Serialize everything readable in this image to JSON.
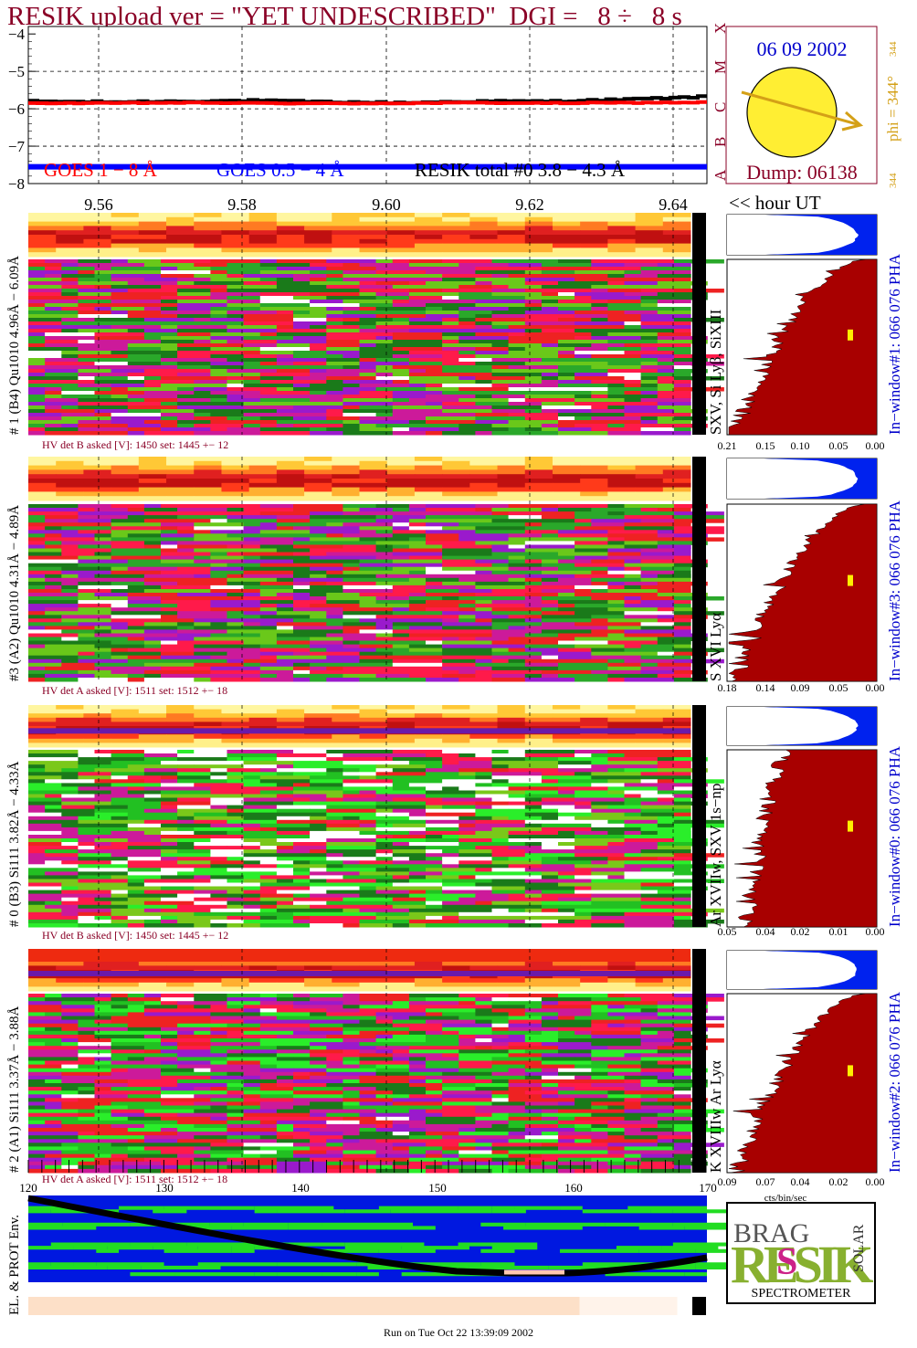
{
  "header": {
    "title": "RESIK upload ver = \"YET UNDESCRIBED\"  DGI =   8 ÷   8 s"
  },
  "colors": {
    "title": "#8a0026",
    "goes_long": "#ff0000",
    "goes_short": "#0000ff",
    "resik_total": "#000000",
    "phi": "#d4a017",
    "sun": "#ffee33",
    "pha_fill": "#a80000",
    "pha_blue": "#0022ee",
    "orbit_blue": "#0018e0",
    "orbit_green": "#22dd22"
  },
  "lightcurve": {
    "y_ticks": [
      "−4",
      "−5",
      "−6",
      "−7",
      "−8"
    ],
    "class_labels": [
      "X",
      "M",
      "C",
      "B",
      "A"
    ],
    "legend": [
      {
        "label": "GOES 1 − 8 Å",
        "color": "#ff0000"
      },
      {
        "label": "GOES 0.5 − 4 Å",
        "color": "#0000ff"
      },
      {
        "label": "RESIK total #0  3.8 − 4.3 Å",
        "color": "#000000"
      }
    ]
  },
  "sun_panel": {
    "date": "06 09 2002",
    "dump": "Dump: 06138",
    "phi_label": "phi = 344°",
    "phi_small_top": "344",
    "phi_small_bottom": "344"
  },
  "time_axis": {
    "labels": [
      "9.56",
      "9.58",
      "9.60",
      "9.62",
      "9.64"
    ],
    "unit_label": "<< hour UT"
  },
  "chart_data": {
    "type": "heatmap",
    "lightcurve": {
      "type": "line",
      "x_range_hour_ut": [
        9.545,
        9.65
      ],
      "ylim": [
        -8,
        -3.8
      ],
      "series": [
        {
          "name": "GOES 1 − 8 Å",
          "values": [
            -5.85,
            -5.85,
            -5.84,
            -5.85,
            -5.86,
            -5.85,
            -5.84,
            -5.85,
            -5.84,
            -5.83
          ]
        },
        {
          "name": "GOES 0.5 − 4 Å",
          "values": [
            -7.55,
            -7.55,
            -7.55,
            -7.55,
            -7.55,
            -7.55,
            -7.55,
            -7.55,
            -7.55,
            -7.55
          ]
        },
        {
          "name": "RESIK total #0  3.8 − 4.3 Å",
          "values": [
            -5.8,
            -5.82,
            -5.8,
            -5.78,
            -5.82,
            -5.84,
            -5.8,
            -5.8,
            -5.75,
            -5.68
          ]
        }
      ]
    },
    "detectors": [
      {
        "label": "# 1 (B4) Qu1010 4.96Å − 6.09Å",
        "lines": "SXV, Si Lyβ, SiXIII",
        "hv": "HV det B asked [V]:  1450 set:  1445 +−   12",
        "pha_title": "In−window#1:  066 076 PHA",
        "pha_ticks": [
          "0.21",
          "0.15",
          "0.10",
          "0.05",
          "0.00"
        ]
      },
      {
        "label": "#3 (A2) Qu1010  4.31Å − 4.89Å",
        "lines": "S XVI Lyα",
        "hv": "HV det A asked [V]:  1511 set:  1512 +−   18",
        "pha_title": "In−window#3:  066 076 PHA",
        "pha_ticks": [
          "0.18",
          "0.14",
          "0.09",
          "0.05",
          "0.00"
        ]
      },
      {
        "label": "# 0 (B3) Si111  3.82Å − 4.33Å",
        "lines": "Ar XVIIw,  SXV 1s−np",
        "hv": "HV det B asked [V]:  1450 set:  1445 +−   12",
        "pha_title": "In−window#0:  066 076 PHA",
        "pha_ticks": [
          "0.05",
          "0.04",
          "0.02",
          "0.01",
          "0.00"
        ]
      },
      {
        "label": "# 2 (A1) Si111  3.37Å − 3.88Å",
        "lines": "K XVIIIw  Ar Lyα",
        "hv": "HV det A asked [V]:  1511 set:  1512 +−   18",
        "pha_title": "In−window#2:  066 076 PHA",
        "pha_ticks": [
          "0.09",
          "0.07",
          "0.04",
          "0.02",
          "0.00"
        ]
      }
    ],
    "pha_xlabel": "cts/bin/sec",
    "channel_ticks": [
      "120",
      "130",
      "140",
      "150",
      "160",
      "170"
    ]
  },
  "orbit_panel": {
    "label": "EL. & PROT Env."
  },
  "logo": {
    "letters": "RESIK",
    "words": [
      "BRAG",
      "SOLAR"
    ],
    "caption": "SPECTROMETER"
  },
  "footer": {
    "run_label": "Run on Tue Oct 22 13:39:09 2002"
  }
}
